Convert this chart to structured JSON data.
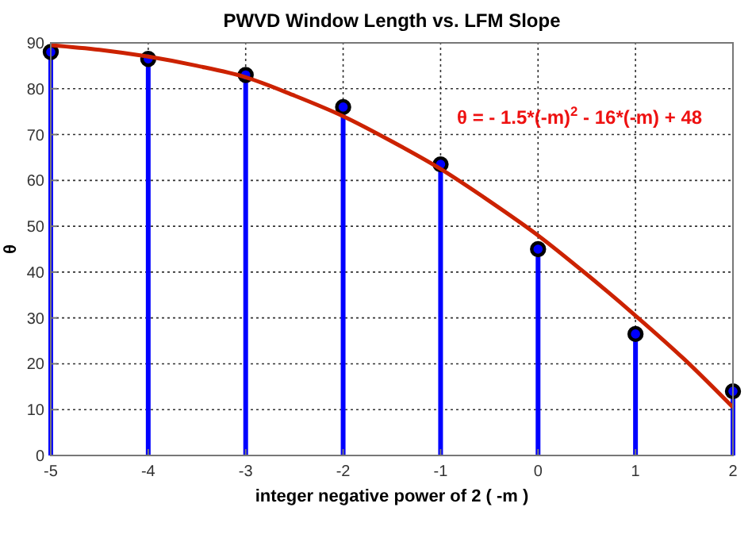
{
  "chart_data": {
    "type": "lollipop",
    "title": "PWVD Window Length vs. LFM Slope",
    "xlabel": "integer negative power of 2 ( -m )",
    "ylabel": "θ",
    "x": [
      -5,
      -4,
      -3,
      -2,
      -1,
      0,
      1,
      2
    ],
    "series": [
      {
        "color": "#0000ff",
        "values": [
          88,
          86.5,
          83,
          76,
          63.5,
          45,
          26.5,
          14
        ],
        "marker": "circle"
      },
      {
        "type": "line",
        "color": "#cc2200",
        "x": [
          -5,
          -4.5,
          -4,
          -3.5,
          -3,
          -2.5,
          -2,
          -1.5,
          -1,
          -0.5,
          0,
          0.5,
          1,
          1.5,
          2
        ],
        "values": [
          89.5,
          88.5,
          87,
          85,
          82.5,
          78.5,
          74,
          68.5,
          62.5,
          55.5,
          48,
          39.5,
          30.5,
          21,
          10.5
        ],
        "marker": "none",
        "line_style": "solid"
      }
    ],
    "xlim": [
      -5,
      2
    ],
    "xticks": [
      -5,
      -4,
      -3,
      -2,
      -1,
      0,
      1,
      2
    ],
    "ylim": [
      0,
      90
    ],
    "yticks": [
      0,
      10,
      20,
      30,
      40,
      50,
      60,
      70,
      80,
      90
    ],
    "grid": true,
    "annotations": [
      "θ = - 1.5*(-m)$^{2}$ - 16*(-m) + 48"
    ]
  }
}
